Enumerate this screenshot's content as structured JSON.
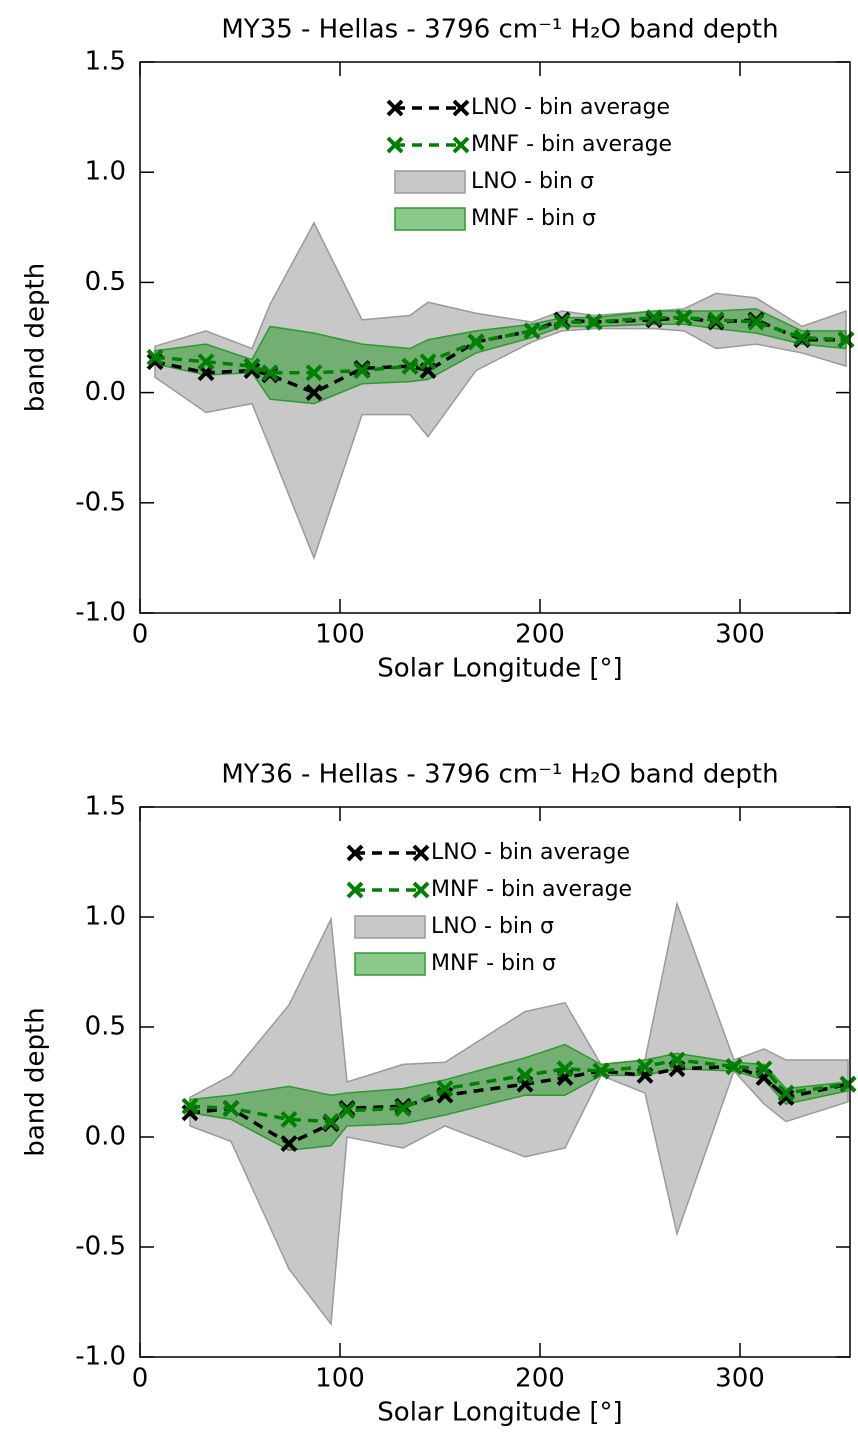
{
  "chart_data": [
    {
      "type": "line",
      "title": "MY35 - Hellas - 3796 cm⁻¹ H₂O band depth",
      "xlabel": "Solar Longitude [°]",
      "ylabel": "band depth",
      "xlim": [
        0,
        355
      ],
      "ylim": [
        -1,
        1.5
      ],
      "xticks": [
        0,
        100,
        200,
        300
      ],
      "yticks": [
        {
          "value": -1,
          "label": "-1.0"
        },
        -0.5,
        {
          "value": 0,
          "label": "0.0"
        },
        0.5,
        {
          "value": 1,
          "label": "1.0"
        },
        1.5
      ],
      "legend": "upper center",
      "x": [
        7.5,
        33,
        56,
        65,
        87,
        111,
        135,
        144,
        168,
        196,
        211,
        227,
        257,
        272,
        288,
        308,
        331,
        353
      ],
      "series": [
        {
          "name": "LNO - bin average",
          "color": "#000000",
          "values": [
            0.14,
            0.09,
            0.1,
            0.08,
            0.0,
            0.11,
            0.12,
            0.1,
            0.23,
            0.28,
            0.33,
            0.32,
            0.33,
            0.34,
            0.32,
            0.33,
            0.24,
            0.24
          ]
        },
        {
          "name": "MNF - bin average",
          "color": "#008000",
          "values": [
            0.16,
            0.14,
            0.12,
            0.09,
            0.09,
            0.1,
            0.12,
            0.14,
            0.23,
            0.28,
            0.32,
            0.32,
            0.34,
            0.34,
            0.33,
            0.32,
            0.25,
            0.24
          ]
        },
        {
          "name": "LNO - bin σ",
          "color": "#9a9a9a",
          "upper": [
            0.21,
            0.28,
            0.2,
            0.4,
            0.77,
            0.33,
            0.35,
            0.41,
            0.36,
            0.32,
            0.37,
            0.35,
            0.37,
            0.38,
            0.45,
            0.43,
            0.3,
            0.37
          ],
          "lower": [
            0.07,
            -0.09,
            -0.05,
            -0.25,
            -0.75,
            -0.1,
            -0.1,
            -0.2,
            0.1,
            0.23,
            0.28,
            0.29,
            0.29,
            0.28,
            0.2,
            0.22,
            0.18,
            0.12
          ]
        },
        {
          "name": "MNF - bin σ",
          "color": "#2e9a2e",
          "upper": [
            0.19,
            0.22,
            0.15,
            0.3,
            0.27,
            0.22,
            0.2,
            0.24,
            0.28,
            0.31,
            0.34,
            0.34,
            0.37,
            0.37,
            0.37,
            0.38,
            0.28,
            0.28
          ],
          "lower": [
            0.13,
            0.08,
            0.09,
            -0.03,
            -0.05,
            0.04,
            0.05,
            0.06,
            0.18,
            0.25,
            0.3,
            0.3,
            0.31,
            0.31,
            0.29,
            0.27,
            0.22,
            0.2
          ]
        }
      ]
    },
    {
      "type": "line",
      "title": "MY36 - Hellas - 3796 cm⁻¹ H₂O band depth",
      "xlabel": "Solar Longitude [°]",
      "ylabel": "band depth",
      "xlim": [
        0,
        355
      ],
      "ylim": [
        -1,
        1.5
      ],
      "xticks": [
        0,
        100,
        200,
        300
      ],
      "yticks": [
        {
          "value": -1,
          "label": "-1.0"
        },
        -0.5,
        {
          "value": 0,
          "label": "0.0"
        },
        0.5,
        {
          "value": 1,
          "label": "1.0"
        },
        1.5
      ],
      "legend": "upper center",
      "x": [
        25,
        45.5,
        74.5,
        95.5,
        103.5,
        131.5,
        152.5,
        192.5,
        212.5,
        230.5,
        252.5,
        268.5,
        297,
        312,
        323,
        354
      ],
      "series": [
        {
          "name": "LNO - bin average",
          "color": "#000000",
          "values": [
            0.11,
            0.13,
            -0.03,
            0.06,
            0.13,
            0.14,
            0.19,
            0.24,
            0.27,
            0.3,
            0.28,
            0.31,
            0.32,
            0.27,
            0.18,
            0.24
          ]
        },
        {
          "name": "MNF - bin average",
          "color": "#008000",
          "values": [
            0.14,
            0.13,
            0.08,
            0.07,
            0.12,
            0.13,
            0.22,
            0.28,
            0.31,
            0.3,
            0.32,
            0.35,
            0.32,
            0.31,
            0.2,
            0.24
          ]
        },
        {
          "name": "LNO - bin σ",
          "color": "#9a9a9a",
          "upper": [
            0.18,
            0.28,
            0.6,
            0.99,
            0.25,
            0.33,
            0.34,
            0.57,
            0.61,
            0.33,
            0.35,
            1.06,
            0.35,
            0.4,
            0.35,
            0.35
          ],
          "lower": [
            0.05,
            -0.02,
            -0.6,
            -0.85,
            0.0,
            -0.05,
            0.05,
            -0.09,
            -0.05,
            0.28,
            0.2,
            -0.44,
            0.3,
            0.15,
            0.07,
            0.16
          ]
        },
        {
          "name": "MNF - bin σ",
          "color": "#2e9a2e",
          "upper": [
            0.17,
            0.19,
            0.23,
            0.19,
            0.2,
            0.22,
            0.26,
            0.36,
            0.42,
            0.33,
            0.35,
            0.38,
            0.34,
            0.33,
            0.22,
            0.25
          ],
          "lower": [
            0.11,
            0.08,
            -0.06,
            -0.04,
            0.05,
            0.06,
            0.1,
            0.19,
            0.19,
            0.28,
            0.28,
            0.31,
            0.3,
            0.26,
            0.15,
            0.21
          ]
        }
      ]
    }
  ]
}
